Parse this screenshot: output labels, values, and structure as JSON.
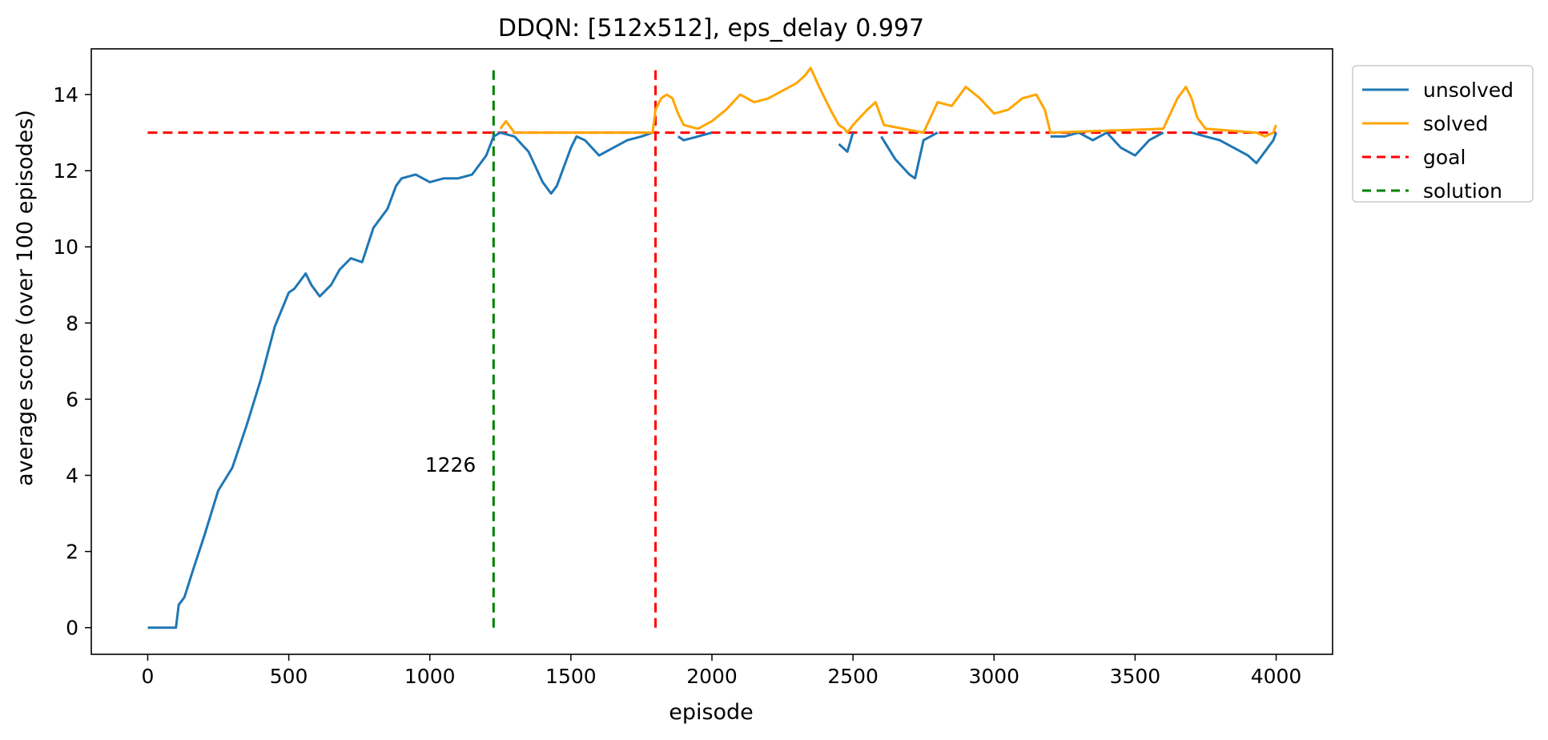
{
  "chart_data": {
    "type": "line",
    "title": "DDQN: [512x512], eps_delay 0.997",
    "xlabel": "episode",
    "ylabel": "average score (over 100 episodes)",
    "xlim": [
      -200,
      4200
    ],
    "ylim": [
      -0.7,
      15.2
    ],
    "xticks": [
      0,
      500,
      1000,
      1500,
      2000,
      2500,
      3000,
      3500,
      4000
    ],
    "yticks": [
      0,
      2,
      4,
      6,
      8,
      10,
      12,
      14
    ],
    "grid": false,
    "legend_position": "outside-top-right",
    "goal_value": 13,
    "solution_episode": 1226,
    "goal_vline_episode": 1800,
    "vline_ymax": 14.7,
    "colors": {
      "unsolved": "#1f77b4",
      "solved": "#ffa500",
      "goal": "#ff0000",
      "solution": "#008000"
    },
    "series": [
      {
        "name": "unsolved",
        "style": "solid",
        "x": [
          0,
          100,
          110,
          130,
          160,
          200,
          250,
          300,
          350,
          400,
          450,
          500,
          520,
          560,
          580,
          610,
          650,
          680,
          720,
          760,
          800,
          850,
          880,
          900,
          950,
          1000,
          1050,
          1100,
          1150,
          1200,
          1226,
          1250,
          1300,
          1350,
          1400,
          1430,
          1450,
          1500,
          1520,
          1550,
          1600,
          1650,
          1700,
          1750,
          1790,
          1800,
          1850,
          1880,
          1900,
          1950,
          2000,
          2050,
          2100,
          2150,
          2200,
          2250,
          2300,
          2350,
          2400,
          2450,
          2480,
          2500,
          2550,
          2600,
          2650,
          2700,
          2720,
          2750,
          2800,
          2850,
          2900,
          2950,
          3000,
          3050,
          3100,
          3150,
          3200,
          3250,
          3300,
          3350,
          3400,
          3450,
          3500,
          3550,
          3600,
          3650,
          3700,
          3750,
          3800,
          3850,
          3900,
          3930,
          3960,
          3990,
          4000
        ],
        "y": [
          0,
          0,
          0.6,
          0.8,
          1.5,
          2.4,
          3.6,
          4.2,
          5.3,
          6.5,
          7.9,
          8.8,
          8.9,
          9.3,
          9.0,
          8.7,
          9.0,
          9.4,
          9.7,
          9.6,
          10.5,
          11.0,
          11.6,
          11.8,
          11.9,
          11.7,
          11.8,
          11.8,
          11.9,
          12.4,
          12.9,
          13.0,
          12.9,
          12.5,
          11.7,
          11.4,
          11.6,
          12.6,
          12.9,
          12.8,
          12.4,
          12.6,
          12.8,
          12.9,
          13.0,
          null,
          null,
          12.9,
          12.8,
          12.9,
          13.0,
          null,
          null,
          null,
          null,
          null,
          null,
          null,
          null,
          12.7,
          12.5,
          13.0,
          null,
          12.9,
          12.3,
          11.9,
          11.8,
          12.8,
          13.0,
          null,
          null,
          null,
          null,
          null,
          null,
          null,
          12.9,
          12.9,
          13.0,
          12.8,
          13.0,
          12.6,
          12.4,
          12.8,
          13.0,
          null,
          13.0,
          12.9,
          12.8,
          12.6,
          12.4,
          12.2,
          12.5,
          12.8,
          13.0
        ]
      },
      {
        "name": "solved",
        "style": "solid",
        "x": [
          1226,
          1250,
          1270,
          1290,
          1300,
          1790,
          1800,
          1820,
          1840,
          1860,
          1880,
          1900,
          1950,
          2000,
          2050,
          2100,
          2150,
          2200,
          2250,
          2300,
          2330,
          2350,
          2380,
          2420,
          2450,
          2470,
          2480,
          2500,
          2550,
          2580,
          2610,
          2750,
          2800,
          2850,
          2900,
          2950,
          3000,
          3050,
          3100,
          3150,
          3180,
          3200,
          3600,
          3650,
          3680,
          3700,
          3720,
          3750,
          3930,
          3960,
          3990,
          4000
        ],
        "y": [
          null,
          13.1,
          13.3,
          13.1,
          13.0,
          13.0,
          13.6,
          13.9,
          14.0,
          13.9,
          13.5,
          13.2,
          13.1,
          13.3,
          13.6,
          14.0,
          13.8,
          13.9,
          14.1,
          14.3,
          14.5,
          14.7,
          14.2,
          13.6,
          13.2,
          13.1,
          13.0,
          13.2,
          13.6,
          13.8,
          13.2,
          13.0,
          13.8,
          13.7,
          14.2,
          13.9,
          13.5,
          13.6,
          13.9,
          14.0,
          13.6,
          13.0,
          13.1,
          13.9,
          14.2,
          13.9,
          13.4,
          13.1,
          13.0,
          12.9,
          13.0,
          13.2
        ]
      }
    ],
    "legend": [
      {
        "key": "unsolved",
        "label": "unsolved",
        "style": "solid"
      },
      {
        "key": "solved",
        "label": "solved",
        "style": "solid"
      },
      {
        "key": "goal",
        "label": "goal",
        "style": "dashed"
      },
      {
        "key": "solution",
        "label": "solution",
        "style": "dashed"
      }
    ],
    "annotations": [
      {
        "text": "1226",
        "x": 1226,
        "y": 4.2
      }
    ]
  }
}
